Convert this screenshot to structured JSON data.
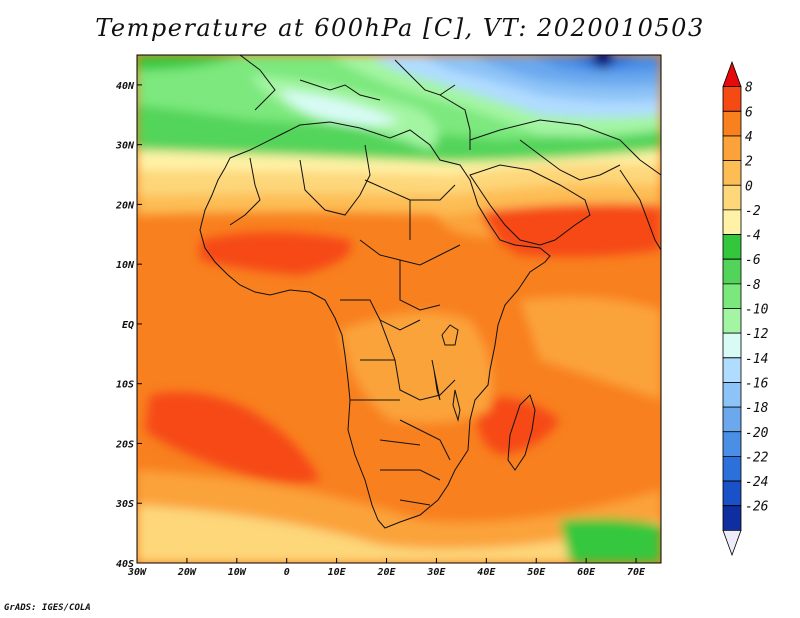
{
  "title": "Temperature at 600hPa [C], VT: 2020010503",
  "footer": "GrADS: IGES/COLA",
  "map": {
    "lon_range": [
      -30,
      75
    ],
    "lat_range": [
      -40,
      45
    ],
    "lon_ticks": [
      {
        "value": -30,
        "label": "30W"
      },
      {
        "value": -20,
        "label": "20W"
      },
      {
        "value": -10,
        "label": "10W"
      },
      {
        "value": 0,
        "label": "0"
      },
      {
        "value": 10,
        "label": "10E"
      },
      {
        "value": 20,
        "label": "20E"
      },
      {
        "value": 30,
        "label": "30E"
      },
      {
        "value": 40,
        "label": "40E"
      },
      {
        "value": 50,
        "label": "50E"
      },
      {
        "value": 60,
        "label": "60E"
      },
      {
        "value": 70,
        "label": "70E"
      }
    ],
    "lat_ticks": [
      {
        "value": 40,
        "label": "40N"
      },
      {
        "value": 30,
        "label": "30N"
      },
      {
        "value": 20,
        "label": "20N"
      },
      {
        "value": 10,
        "label": "10N"
      },
      {
        "value": 0,
        "label": "EQ"
      },
      {
        "value": -10,
        "label": "10S"
      },
      {
        "value": -20,
        "label": "20S"
      },
      {
        "value": -30,
        "label": "30S"
      },
      {
        "value": -40,
        "label": "40S"
      }
    ]
  },
  "colorbar": {
    "levels": [
      "8",
      "6",
      "4",
      "2",
      "0",
      "-2",
      "-4",
      "-6",
      "-8",
      "-10",
      "-12",
      "-14",
      "-16",
      "-18",
      "-20",
      "-22",
      "-24",
      "-26"
    ],
    "colors": [
      "#e60a0a",
      "#f64a14",
      "#f8801f",
      "#fba33a",
      "#fdbd55",
      "#fdd77a",
      "#fff2a6",
      "#34c73c",
      "#52d45a",
      "#7be87d",
      "#a4f5a3",
      "#d8fbf5",
      "#b0dcff",
      "#8dc3f7",
      "#6ba8ee",
      "#4a8ee6",
      "#2c70db",
      "#1a50c8",
      "#0f2fa0",
      "#101070"
    ],
    "unit": "C"
  }
}
